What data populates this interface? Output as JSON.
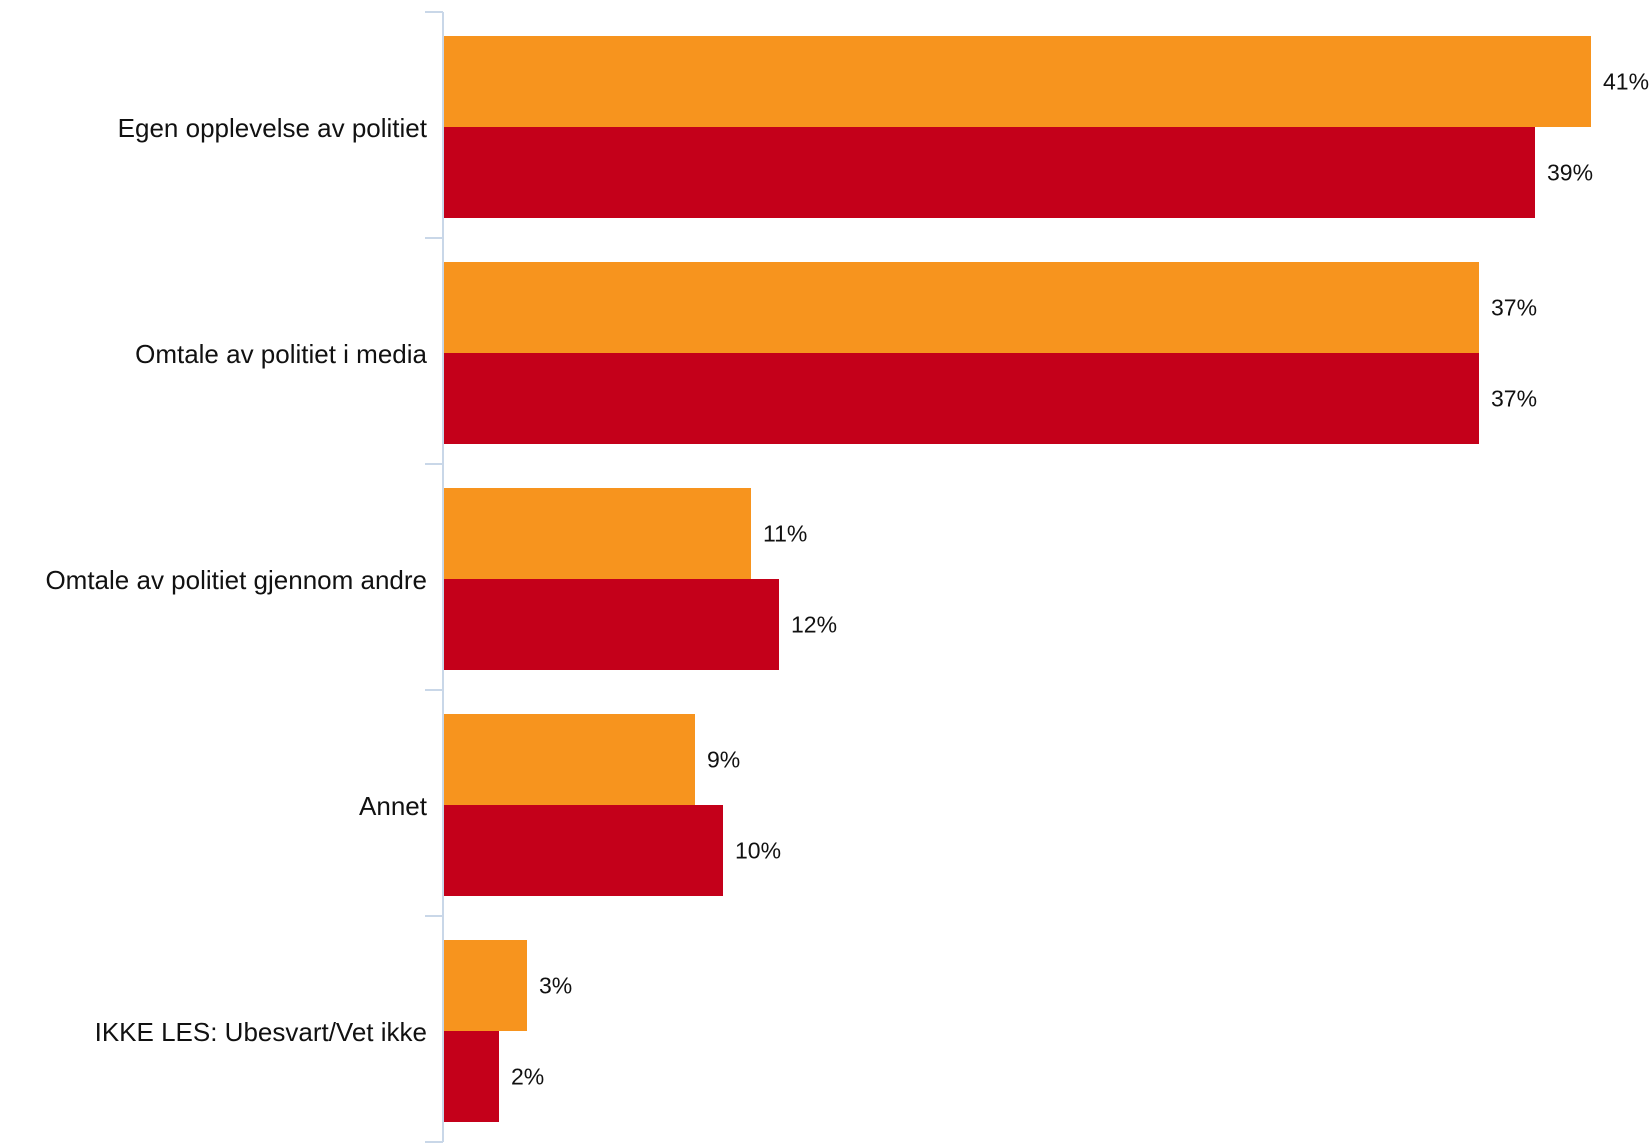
{
  "chart_data": {
    "type": "bar",
    "orientation": "horizontal",
    "categories": [
      "Egen opplevelse av politiet",
      "Omtale av politiet i media",
      "Omtale av politiet gjennom andre",
      "Annet",
      "IKKE LES: Ubesvart/Vet ikke"
    ],
    "series": [
      {
        "values": [
          41,
          37,
          11,
          9,
          3
        ],
        "labels": [
          "41%",
          "37%",
          "11%",
          "9%",
          "3%"
        ],
        "color": "#F7941E"
      },
      {
        "values": [
          39,
          37,
          12,
          10,
          2
        ],
        "labels": [
          "39%",
          "37%",
          "12%",
          "10%",
          "2%"
        ],
        "color": "#C4001A"
      }
    ],
    "xlim": [
      0,
      41
    ],
    "value_unit": "%",
    "axis_color": "#C9D7E8",
    "grid": false,
    "legend": "none"
  }
}
